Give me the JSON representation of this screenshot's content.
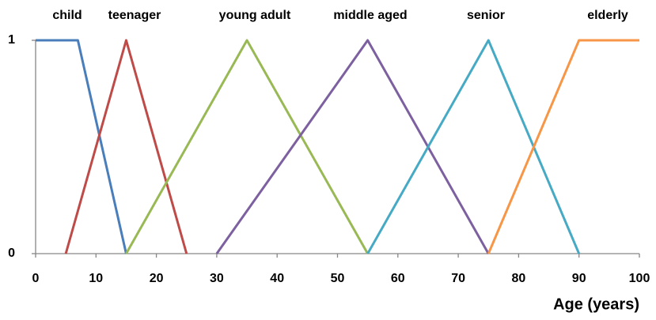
{
  "chart_data": {
    "type": "line",
    "x_label": "Age (years)",
    "xlim": [
      0,
      100
    ],
    "xticks": [
      0,
      10,
      20,
      30,
      40,
      50,
      60,
      70,
      80,
      90,
      100
    ],
    "ylim": [
      0,
      1
    ],
    "yticks": [
      0,
      1
    ],
    "grid": false,
    "series": [
      {
        "name": "child",
        "color": "#4a7ebb",
        "x": [
          0,
          7,
          15
        ],
        "values": [
          1,
          1,
          0
        ]
      },
      {
        "name": "teenager",
        "color": "#be4b48",
        "x": [
          5,
          15,
          25
        ],
        "values": [
          0,
          1,
          0
        ]
      },
      {
        "name": "young adult",
        "color": "#98b954",
        "x": [
          15,
          35,
          55
        ],
        "values": [
          0,
          1,
          0
        ]
      },
      {
        "name": "middle aged",
        "color": "#7d60a0",
        "x": [
          30,
          55,
          75
        ],
        "values": [
          0,
          1,
          0
        ]
      },
      {
        "name": "senior",
        "color": "#46aac5",
        "x": [
          55,
          75,
          90
        ],
        "values": [
          0,
          1,
          0
        ]
      },
      {
        "name": "elderly",
        "color": "#f79646",
        "x": [
          75,
          90,
          100
        ],
        "values": [
          0,
          1,
          1
        ]
      }
    ]
  }
}
